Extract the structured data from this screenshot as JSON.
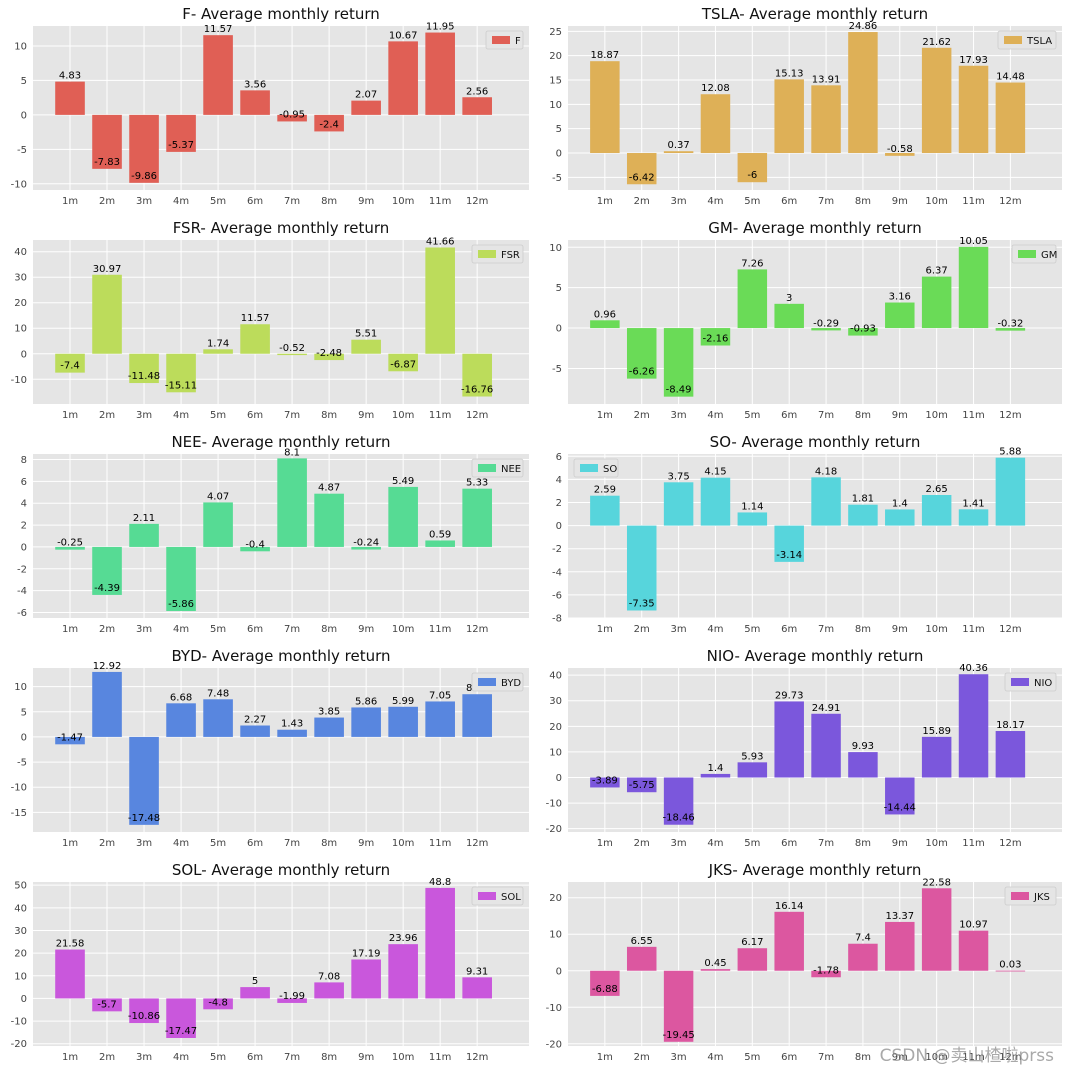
{
  "figure": {
    "title_suffix": "- Average monthly return",
    "month_labels": [
      "1m",
      "2m",
      "3m",
      "4m",
      "5m",
      "6m",
      "7m",
      "8m",
      "9m",
      "10m",
      "11m",
      "12m"
    ]
  },
  "watermark": "CSDN @卖山楂啦prss",
  "chart_data": [
    {
      "type": "bar",
      "ticker": "F",
      "title": "F- Average monthly return",
      "legend": "F",
      "legend_loc": "top-right",
      "color": "#e05f55",
      "ylim": [
        -10.9,
        12.9
      ],
      "yticks": [
        -10,
        -5,
        0,
        5,
        10
      ],
      "categories": [
        "1m",
        "2m",
        "3m",
        "4m",
        "5m",
        "6m",
        "7m",
        "8m",
        "9m",
        "10m",
        "11m",
        "12m"
      ],
      "values": [
        4.83,
        -7.83,
        -9.86,
        -5.37,
        11.57,
        3.56,
        -0.95,
        -2.4,
        2.07,
        10.67,
        11.95,
        2.56
      ]
    },
    {
      "type": "bar",
      "ticker": "TSLA",
      "title": "TSLA- Average monthly return",
      "legend": "TSLA",
      "legend_loc": "top-right",
      "color": "#deb057",
      "ylim": [
        -7.6,
        26.1
      ],
      "yticks": [
        -5,
        0,
        5,
        10,
        15,
        20,
        25
      ],
      "categories": [
        "1m",
        "2m",
        "3m",
        "4m",
        "5m",
        "6m",
        "7m",
        "8m",
        "9m",
        "10m",
        "11m",
        "12m"
      ],
      "values": [
        18.87,
        -6.42,
        0.37,
        12.08,
        -6.0,
        15.13,
        13.91,
        24.86,
        -0.58,
        21.62,
        17.93,
        14.48
      ]
    },
    {
      "type": "bar",
      "ticker": "FSR",
      "title": "FSR- Average monthly return",
      "legend": "FSR",
      "legend_loc": "top-right",
      "color": "#bcdc5b",
      "ylim": [
        -19.7,
        44.6
      ],
      "yticks": [
        -10,
        0,
        10,
        20,
        30,
        40
      ],
      "categories": [
        "1m",
        "2m",
        "3m",
        "4m",
        "5m",
        "6m",
        "7m",
        "8m",
        "9m",
        "10m",
        "11m",
        "12m"
      ],
      "values": [
        -7.4,
        30.97,
        -11.48,
        -15.11,
        1.74,
        11.57,
        -0.52,
        -2.48,
        5.51,
        -6.87,
        41.66,
        -16.76
      ]
    },
    {
      "type": "bar",
      "ticker": "GM",
      "title": "GM- Average monthly return",
      "legend": "GM",
      "legend_loc": "top-right",
      "color": "#6adb57",
      "ylim": [
        -9.4,
        10.9
      ],
      "yticks": [
        -5,
        0,
        5,
        10
      ],
      "categories": [
        "1m",
        "2m",
        "3m",
        "4m",
        "5m",
        "6m",
        "7m",
        "8m",
        "9m",
        "10m",
        "11m",
        "12m"
      ],
      "values": [
        0.96,
        -6.26,
        -8.49,
        -2.16,
        7.26,
        3.0,
        -0.29,
        -0.93,
        3.16,
        6.37,
        10.05,
        -0.32
      ]
    },
    {
      "type": "bar",
      "ticker": "NEE",
      "title": "NEE- Average monthly return",
      "legend": "NEE",
      "legend_loc": "top-right",
      "color": "#56db94",
      "ylim": [
        -6.5,
        8.5
      ],
      "yticks": [
        -6,
        -4,
        -2,
        0,
        2,
        4,
        6,
        8
      ],
      "categories": [
        "1m",
        "2m",
        "3m",
        "4m",
        "5m",
        "6m",
        "7m",
        "8m",
        "9m",
        "10m",
        "11m",
        "12m"
      ],
      "values": [
        -0.25,
        -4.39,
        2.11,
        -5.86,
        4.07,
        -0.4,
        8.1,
        4.87,
        -0.24,
        5.49,
        0.59,
        5.33
      ]
    },
    {
      "type": "bar",
      "ticker": "SO",
      "title": "SO- Average monthly return",
      "legend": "SO",
      "legend_loc": "top-left",
      "color": "#57d5dc",
      "ylim": [
        -8.0,
        6.2
      ],
      "yticks": [
        -8,
        -6,
        -4,
        -2,
        0,
        2,
        4,
        6
      ],
      "categories": [
        "1m",
        "2m",
        "3m",
        "4m",
        "5m",
        "6m",
        "7m",
        "8m",
        "9m",
        "10m",
        "11m",
        "12m"
      ],
      "values": [
        2.59,
        -7.35,
        3.75,
        4.15,
        1.14,
        -3.14,
        4.18,
        1.81,
        1.4,
        2.65,
        1.41,
        5.88
      ]
    },
    {
      "type": "bar",
      "ticker": "BYD",
      "title": "BYD- Average monthly return",
      "legend": "BYD",
      "legend_loc": "top-right",
      "color": "#5886df",
      "ylim": [
        -18.9,
        13.7
      ],
      "yticks": [
        -15,
        -10,
        -5,
        0,
        5,
        10
      ],
      "categories": [
        "1m",
        "2m",
        "3m",
        "4m",
        "5m",
        "6m",
        "7m",
        "8m",
        "9m",
        "10m",
        "11m",
        "12m"
      ],
      "values": [
        -1.47,
        12.92,
        -17.48,
        6.68,
        7.48,
        2.27,
        1.43,
        3.85,
        5.86,
        5.99,
        7.05,
        8.49
      ]
    },
    {
      "type": "bar",
      "ticker": "NIO",
      "title": "NIO- Average monthly return",
      "legend": "NIO",
      "legend_loc": "top-right",
      "color": "#7b57dc",
      "ylim": [
        -21.3,
        42.8
      ],
      "yticks": [
        -20,
        -10,
        0,
        10,
        20,
        30,
        40
      ],
      "categories": [
        "1m",
        "2m",
        "3m",
        "4m",
        "5m",
        "6m",
        "7m",
        "8m",
        "9m",
        "10m",
        "11m",
        "12m"
      ],
      "values": [
        -3.89,
        -5.75,
        -18.46,
        1.4,
        5.93,
        29.73,
        24.91,
        9.93,
        -14.44,
        15.89,
        40.36,
        18.17
      ]
    },
    {
      "type": "bar",
      "ticker": "SOL",
      "title": "SOL- Average monthly return",
      "legend": "SOL",
      "legend_loc": "top-right",
      "color": "#c957dc",
      "ylim": [
        -21.0,
        51.4
      ],
      "yticks": [
        -20,
        -10,
        0,
        10,
        20,
        30,
        40,
        50
      ],
      "categories": [
        "1m",
        "2m",
        "3m",
        "4m",
        "5m",
        "6m",
        "7m",
        "8m",
        "9m",
        "10m",
        "11m",
        "12m"
      ],
      "values": [
        21.58,
        -5.7,
        -10.86,
        -17.47,
        -4.8,
        5.0,
        -1.99,
        7.08,
        17.19,
        23.96,
        48.8,
        9.31
      ]
    },
    {
      "type": "bar",
      "ticker": "JKS",
      "title": "JKS- Average monthly return",
      "legend": "JKS",
      "legend_loc": "top-right",
      "color": "#dc57a0",
      "ylim": [
        -20.6,
        24.3
      ],
      "yticks": [
        -20,
        -10,
        0,
        10,
        20
      ],
      "categories": [
        "1m",
        "2m",
        "3m",
        "4m",
        "5m",
        "6m",
        "7m",
        "8m",
        "9m",
        "10m",
        "11m",
        "12m"
      ],
      "values": [
        -6.88,
        6.55,
        -19.45,
        0.45,
        6.17,
        16.14,
        -1.78,
        7.4,
        13.37,
        22.58,
        10.97,
        0.03
      ]
    }
  ]
}
